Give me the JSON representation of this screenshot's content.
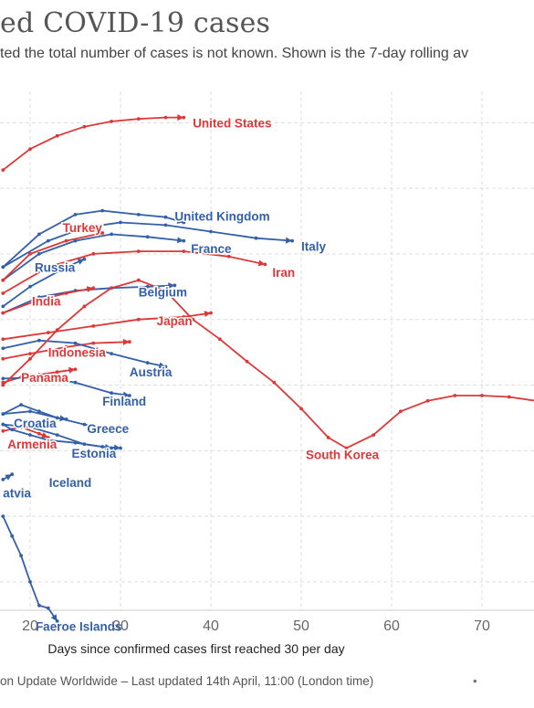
{
  "chart": {
    "title": "ed COVID-19 cases",
    "subtitle": "ted the total number of cases is not known. Shown is the 7-day rolling av",
    "footer": "on Update Worldwide – Last updated 14th April, 11:00 (London time)",
    "footer_dot": "•"
  },
  "colors": {
    "europe": "#3360a9",
    "other": "#de3737",
    "grid": "#dddddd",
    "axis_text": "#666666"
  },
  "chart_data": {
    "type": "line",
    "title": "ed COVID-19 cases",
    "subtitle": "ted the total number of cases is not known. Shown is the 7-day rolling av",
    "xlabel": "Days since confirmed cases first reached 30 per day",
    "ylabel": "",
    "xlim": [
      17,
      79
    ],
    "ylog": true,
    "ylim_log10": [
      0.7,
      4.6
    ],
    "x_ticks": [
      20,
      30,
      40,
      50,
      60,
      70
    ],
    "x_tick_labels": [
      "20",
      "30",
      "40",
      "50",
      "60",
      "70"
    ],
    "grid": true,
    "series": [
      {
        "name": "United States",
        "color": "#de3737",
        "x": [
          17,
          20,
          23,
          26,
          29,
          32,
          35,
          37
        ],
        "y": [
          4.14,
          4.3,
          4.4,
          4.47,
          4.51,
          4.53,
          4.54,
          4.54
        ]
      },
      {
        "name": "United Kingdom",
        "color": "#3360a9",
        "x": [
          17,
          21,
          25,
          28,
          32,
          35,
          37
        ],
        "y": [
          3.4,
          3.65,
          3.8,
          3.83,
          3.8,
          3.78,
          3.74
        ]
      },
      {
        "name": "Italy",
        "color": "#3360a9",
        "x": [
          17,
          22,
          26,
          30,
          35,
          40,
          45,
          49
        ],
        "y": [
          3.4,
          3.6,
          3.7,
          3.74,
          3.72,
          3.67,
          3.62,
          3.6
        ]
      },
      {
        "name": "France",
        "color": "#3360a9",
        "x": [
          17,
          21,
          25,
          29,
          33,
          37
        ],
        "y": [
          3.3,
          3.5,
          3.6,
          3.65,
          3.63,
          3.6
        ]
      },
      {
        "name": "Turkey",
        "color": "#de3737",
        "x": [
          17,
          20,
          24,
          28
        ],
        "y": [
          3.3,
          3.5,
          3.6,
          3.66
        ]
      },
      {
        "name": "Iran",
        "color": "#de3737",
        "x": [
          17,
          22,
          27,
          32,
          37,
          42,
          46
        ],
        "y": [
          3.2,
          3.4,
          3.5,
          3.52,
          3.52,
          3.48,
          3.42
        ]
      },
      {
        "name": "Russia",
        "color": "#3360a9",
        "x": [
          17,
          20,
          24,
          26
        ],
        "y": [
          3.1,
          3.25,
          3.4,
          3.46
        ]
      },
      {
        "name": "Belgium",
        "color": "#3360a9",
        "x": [
          17,
          21,
          25,
          29,
          33,
          36
        ],
        "y": [
          3.05,
          3.17,
          3.22,
          3.24,
          3.25,
          3.26
        ]
      },
      {
        "name": "India",
        "color": "#de3737",
        "x": [
          17,
          21,
          24,
          27
        ],
        "y": [
          3.05,
          3.15,
          3.2,
          3.24
        ]
      },
      {
        "name": "Japan",
        "color": "#de3737",
        "x": [
          17,
          22,
          27,
          32,
          37,
          40
        ],
        "y": [
          2.85,
          2.9,
          2.95,
          3.0,
          3.02,
          3.05
        ]
      },
      {
        "name": "Indonesia",
        "color": "#de3737",
        "x": [
          17,
          20,
          24,
          27,
          31
        ],
        "y": [
          2.7,
          2.74,
          2.79,
          2.82,
          2.83
        ]
      },
      {
        "name": "Austria",
        "color": "#3360a9",
        "x": [
          17,
          21,
          25,
          29,
          33,
          35
        ],
        "y": [
          2.78,
          2.84,
          2.82,
          2.74,
          2.67,
          2.64
        ]
      },
      {
        "name": "Panama",
        "color": "#de3737",
        "x": [
          17,
          19,
          21,
          23,
          25
        ],
        "y": [
          2.52,
          2.56,
          2.58,
          2.6,
          2.62
        ]
      },
      {
        "name": "Finland",
        "color": "#3360a9",
        "x": [
          17,
          21,
          25,
          29,
          31
        ],
        "y": [
          2.55,
          2.56,
          2.52,
          2.44,
          2.42
        ]
      },
      {
        "name": "South Korea",
        "color": "#de3737",
        "x": [
          17,
          20,
          23,
          26,
          29,
          32,
          35,
          38,
          41,
          44,
          47,
          50,
          53,
          55,
          58,
          61,
          64,
          67,
          70,
          73,
          76,
          79
        ],
        "y": [
          2.5,
          2.7,
          2.92,
          3.1,
          3.24,
          3.3,
          3.22,
          3.0,
          2.85,
          2.68,
          2.52,
          2.32,
          2.1,
          2.02,
          2.12,
          2.3,
          2.38,
          2.42,
          2.42,
          2.41,
          2.38,
          2.35
        ]
      },
      {
        "name": "Croatia",
        "color": "#3360a9",
        "x": [
          17,
          19,
          21,
          23,
          24
        ],
        "y": [
          2.28,
          2.35,
          2.3,
          2.25,
          2.24
        ]
      },
      {
        "name": "Greece",
        "color": "#3360a9",
        "x": [
          17,
          20,
          23,
          26,
          29
        ],
        "y": [
          2.28,
          2.3,
          2.25,
          2.2,
          2.16
        ]
      },
      {
        "name": "Estonia",
        "color": "#3360a9",
        "x": [
          17,
          20,
          23,
          26,
          29
        ],
        "y": [
          2.2,
          2.18,
          2.12,
          2.05,
          2.02
        ]
      },
      {
        "name": "Armenia",
        "color": "#de3737",
        "x": [
          17,
          19,
          21,
          22
        ],
        "y": [
          2.15,
          2.18,
          2.13,
          2.1
        ]
      },
      {
        "name": "Iceland",
        "color": "#3360a9",
        "x": [
          17,
          18,
          20,
          22,
          25,
          28,
          30
        ],
        "y": [
          2.2,
          2.16,
          2.12,
          2.08,
          2.06,
          2.03,
          2.02
        ]
      },
      {
        "name": "Latvia",
        "color": "#3360a9",
        "x": [
          17,
          18
        ],
        "y": [
          1.78,
          1.82
        ]
      },
      {
        "name": "Faeroe Islands",
        "color": "#3360a9",
        "x": [
          17,
          18,
          19,
          20,
          21,
          22,
          23
        ],
        "y": [
          1.5,
          1.35,
          1.2,
          1.0,
          0.82,
          0.8,
          0.7
        ]
      }
    ],
    "labels": [
      {
        "text": "United States",
        "color": "#de3737",
        "x": 38,
        "y": 4.5
      },
      {
        "text": "United Kingdom",
        "color": "#3360a9",
        "x": 36,
        "y": 3.79
      },
      {
        "text": "Italy",
        "color": "#3360a9",
        "x": 50,
        "y": 3.56
      },
      {
        "text": "France",
        "color": "#3360a9",
        "x": 37.8,
        "y": 3.54
      },
      {
        "text": "Turkey",
        "color": "#de3737",
        "x": 23.6,
        "y": 3.7
      },
      {
        "text": "Iran",
        "color": "#de3737",
        "x": 46.8,
        "y": 3.36
      },
      {
        "text": "Russia",
        "color": "#3360a9",
        "x": 20.5,
        "y": 3.4
      },
      {
        "text": "Belgium",
        "color": "#3360a9",
        "x": 32,
        "y": 3.21
      },
      {
        "text": "India",
        "color": "#de3737",
        "x": 20.2,
        "y": 3.14
      },
      {
        "text": "Japan",
        "color": "#de3737",
        "x": 34,
        "y": 2.99
      },
      {
        "text": "Indonesia",
        "color": "#de3737",
        "x": 22,
        "y": 2.75
      },
      {
        "text": "Austria",
        "color": "#3360a9",
        "x": 31,
        "y": 2.6
      },
      {
        "text": "Panama",
        "color": "#de3737",
        "x": 19,
        "y": 2.56
      },
      {
        "text": "Finland",
        "color": "#3360a9",
        "x": 28,
        "y": 2.38
      },
      {
        "text": "South Korea",
        "color": "#de3737",
        "x": 50.5,
        "y": 1.97
      },
      {
        "text": "Croatia",
        "color": "#3360a9",
        "x": 18.2,
        "y": 2.21
      },
      {
        "text": "Greece",
        "color": "#3360a9",
        "x": 26.3,
        "y": 2.17
      },
      {
        "text": "Estonia",
        "color": "#3360a9",
        "x": 24.6,
        "y": 1.98
      },
      {
        "text": "Armenia",
        "color": "#de3737",
        "x": 17.5,
        "y": 2.05
      },
      {
        "text": "Iceland",
        "color": "#3360a9",
        "x": 22.1,
        "y": 1.76
      },
      {
        "text": "atvia",
        "color": "#3360a9",
        "x": 17,
        "y": 1.68
      },
      {
        "text": "Faeroe Islands",
        "color": "#3360a9",
        "x": 20.6,
        "y": 0.66
      }
    ]
  }
}
